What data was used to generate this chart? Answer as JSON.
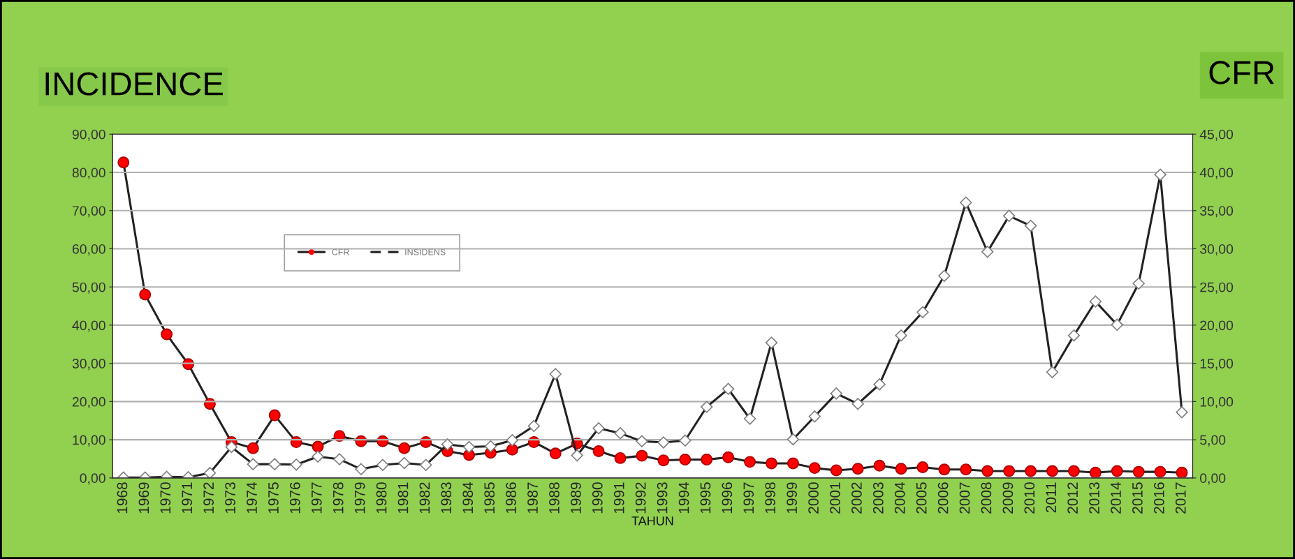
{
  "chart_data": {
    "type": "line",
    "ylabel": "INCIDENCE",
    "y2label": "CFR",
    "xlabel": "TAHUN",
    "categories": [
      "1968",
      "1969",
      "1970",
      "1971",
      "1972",
      "1973",
      "1974",
      "1975",
      "1976",
      "1977",
      "1978",
      "1979",
      "1980",
      "1981",
      "1982",
      "1983",
      "1984",
      "1985",
      "1986",
      "1987",
      "1988",
      "1989",
      "1990",
      "1991",
      "1992",
      "1993",
      "1994",
      "1995",
      "1996",
      "1997",
      "1998",
      "1999",
      "2000",
      "2001",
      "2002",
      "2003",
      "2004",
      "2005",
      "2006",
      "2007",
      "2008",
      "2009",
      "2010",
      "2011",
      "2012",
      "2013",
      "2014",
      "2015",
      "2016",
      "2017"
    ],
    "series": [
      {
        "name": "CFR",
        "axis": "y2",
        "color": "#ff0000",
        "marker": "circle",
        "values": [
          41.3,
          24.0,
          18.8,
          14.9,
          9.7,
          4.7,
          3.9,
          8.2,
          4.7,
          4.1,
          5.5,
          4.8,
          4.8,
          3.9,
          4.7,
          3.5,
          3.0,
          3.3,
          3.7,
          4.7,
          3.2,
          4.5,
          3.5,
          2.6,
          2.9,
          2.3,
          2.4,
          2.4,
          2.7,
          2.1,
          1.9,
          1.9,
          1.3,
          1.0,
          1.2,
          1.6,
          1.2,
          1.4,
          1.1,
          1.1,
          0.9,
          0.9,
          0.9,
          0.9,
          0.9,
          0.7,
          0.9,
          0.8,
          0.8,
          0.7
        ]
      },
      {
        "name": "INSIDENS",
        "axis": "y",
        "color": "#222222",
        "marker": "diamond",
        "values": [
          0.1,
          0.1,
          0.3,
          0.2,
          1.3,
          8.1,
          3.6,
          3.6,
          3.5,
          5.6,
          4.9,
          2.3,
          3.4,
          3.9,
          3.4,
          8.8,
          8.1,
          8.3,
          9.9,
          13.6,
          27.2,
          5.9,
          13.0,
          11.7,
          9.6,
          9.3,
          9.8,
          18.6,
          23.3,
          15.5,
          35.4,
          10.1,
          16.1,
          22.1,
          19.4,
          24.5,
          37.3,
          43.4,
          52.9,
          72.1,
          59.2,
          68.6,
          66.0,
          27.7,
          37.3,
          46.2,
          40.1,
          50.9,
          79.4,
          17.2
        ]
      }
    ],
    "ylim": [
      0,
      90
    ],
    "yticks": [
      {
        "value": 0,
        "label": "0,00"
      },
      {
        "value": 10,
        "label": "10,00"
      },
      {
        "value": 20,
        "label": "20,00"
      },
      {
        "value": 30,
        "label": "30,00"
      },
      {
        "value": 40,
        "label": "40,00"
      },
      {
        "value": 50,
        "label": "50,00"
      },
      {
        "value": 60,
        "label": "60,00"
      },
      {
        "value": 70,
        "label": "70,00"
      },
      {
        "value": 80,
        "label": "80,00"
      },
      {
        "value": 90,
        "label": "90,00"
      }
    ],
    "y2lim": [
      0,
      45
    ],
    "y2ticks": [
      {
        "value": 0,
        "label": "0,00"
      },
      {
        "value": 5,
        "label": "5,00"
      },
      {
        "value": 10,
        "label": "10,00"
      },
      {
        "value": 15,
        "label": "15,00"
      },
      {
        "value": 20,
        "label": "20,00"
      },
      {
        "value": 25,
        "label": "25,00"
      },
      {
        "value": 30,
        "label": "30,00"
      },
      {
        "value": 35,
        "label": "35,00"
      },
      {
        "value": 40,
        "label": "40,00"
      },
      {
        "value": 45,
        "label": "45,00"
      }
    ],
    "grid": "y",
    "legend": "top left"
  }
}
